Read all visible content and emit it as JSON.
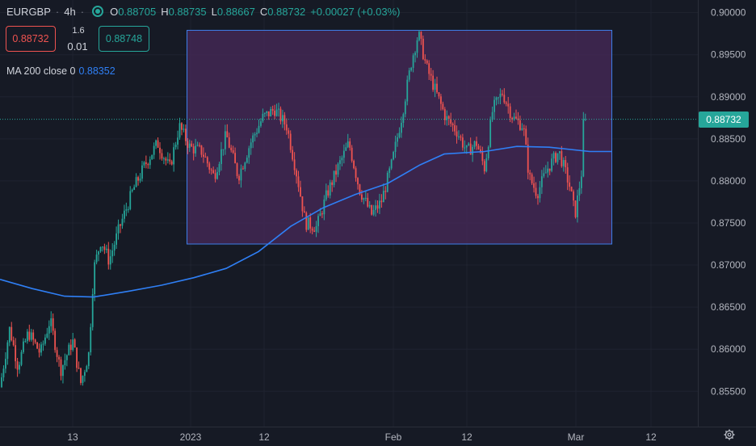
{
  "header": {
    "symbol": "EURGBP",
    "interval": "4h",
    "ohlc": [
      {
        "k": "O",
        "v": "0.88705"
      },
      {
        "k": "H",
        "v": "0.88735"
      },
      {
        "k": "L",
        "v": "0.88667"
      },
      {
        "k": "C",
        "v": "0.88732"
      }
    ],
    "change": "+0.00027 (+0.03%)"
  },
  "trade": {
    "sell_price": "0.88732",
    "buy_price": "0.88748",
    "spread": "1.6",
    "quantity": "0.01"
  },
  "indicator": {
    "label": "MA 200 close 0",
    "value": "0.88352"
  },
  "last_price_tag": "0.88732",
  "colors": {
    "background": "#161a25",
    "up": "#26a69a",
    "down": "#ef5350",
    "ma_line": "#2f7ff5",
    "range_fill": "#4a2a5c",
    "range_border": "#3d7ee8"
  },
  "chart_data": {
    "type": "candlestick",
    "y_ticks": [
      "0.90000",
      "0.89500",
      "0.89000",
      "0.88500",
      "0.88000",
      "0.87500",
      "0.87000",
      "0.86500",
      "0.86000",
      "0.85500"
    ],
    "x_ticks": [
      "13",
      "2023",
      "12",
      "Feb",
      "12",
      "Mar",
      "12"
    ],
    "ylim": [
      0.8508,
      0.9015
    ],
    "close_trend": [
      [
        0,
        0.8555
      ],
      [
        12,
        0.8625
      ],
      [
        22,
        0.858
      ],
      [
        35,
        0.862
      ],
      [
        50,
        0.8595
      ],
      [
        62,
        0.8635
      ],
      [
        75,
        0.8575
      ],
      [
        90,
        0.861
      ],
      [
        100,
        0.856
      ],
      [
        110,
        0.8595
      ],
      [
        116,
        0.8695
      ],
      [
        125,
        0.873
      ],
      [
        135,
        0.8705
      ],
      [
        148,
        0.8745
      ],
      [
        165,
        0.879
      ],
      [
        180,
        0.882
      ],
      [
        195,
        0.8845
      ],
      [
        210,
        0.8815
      ],
      [
        222,
        0.8865
      ],
      [
        235,
        0.884
      ],
      [
        250,
        0.8835
      ],
      [
        265,
        0.8805
      ],
      [
        280,
        0.8855
      ],
      [
        295,
        0.8805
      ],
      [
        310,
        0.8845
      ],
      [
        325,
        0.8875
      ],
      [
        340,
        0.8885
      ],
      [
        355,
        0.8865
      ],
      [
        368,
        0.8805
      ],
      [
        378,
        0.875
      ],
      [
        392,
        0.8745
      ],
      [
        405,
        0.8785
      ],
      [
        418,
        0.8815
      ],
      [
        432,
        0.8845
      ],
      [
        445,
        0.879
      ],
      [
        460,
        0.876
      ],
      [
        472,
        0.8775
      ],
      [
        485,
        0.882
      ],
      [
        498,
        0.888
      ],
      [
        510,
        0.8945
      ],
      [
        518,
        0.8975
      ],
      [
        528,
        0.8935
      ],
      [
        540,
        0.8905
      ],
      [
        552,
        0.8875
      ],
      [
        565,
        0.886
      ],
      [
        578,
        0.8835
      ],
      [
        590,
        0.8845
      ],
      [
        600,
        0.8815
      ],
      [
        610,
        0.8885
      ],
      [
        622,
        0.8905
      ],
      [
        635,
        0.8875
      ],
      [
        648,
        0.8865
      ],
      [
        655,
        0.8805
      ],
      [
        665,
        0.8785
      ],
      [
        678,
        0.8815
      ],
      [
        692,
        0.8835
      ],
      [
        705,
        0.8795
      ],
      [
        712,
        0.876
      ],
      [
        720,
        0.881
      ],
      [
        726,
        0.8873
      ]
    ],
    "ma200": [
      [
        0,
        0.8683
      ],
      [
        40,
        0.8672
      ],
      [
        80,
        0.8663
      ],
      [
        116,
        0.8662
      ],
      [
        160,
        0.8669
      ],
      [
        200,
        0.8676
      ],
      [
        240,
        0.8685
      ],
      [
        280,
        0.8696
      ],
      [
        320,
        0.8716
      ],
      [
        360,
        0.8746
      ],
      [
        400,
        0.8768
      ],
      [
        440,
        0.8784
      ],
      [
        480,
        0.8797
      ],
      [
        520,
        0.8819
      ],
      [
        550,
        0.8832
      ],
      [
        600,
        0.8835
      ],
      [
        640,
        0.8841
      ],
      [
        680,
        0.884
      ],
      [
        730,
        0.8835
      ],
      [
        757,
        0.8835
      ]
    ],
    "range_box": {
      "price_top": 0.8979,
      "price_bottom": 0.8725
    },
    "last_price": 0.88732
  }
}
